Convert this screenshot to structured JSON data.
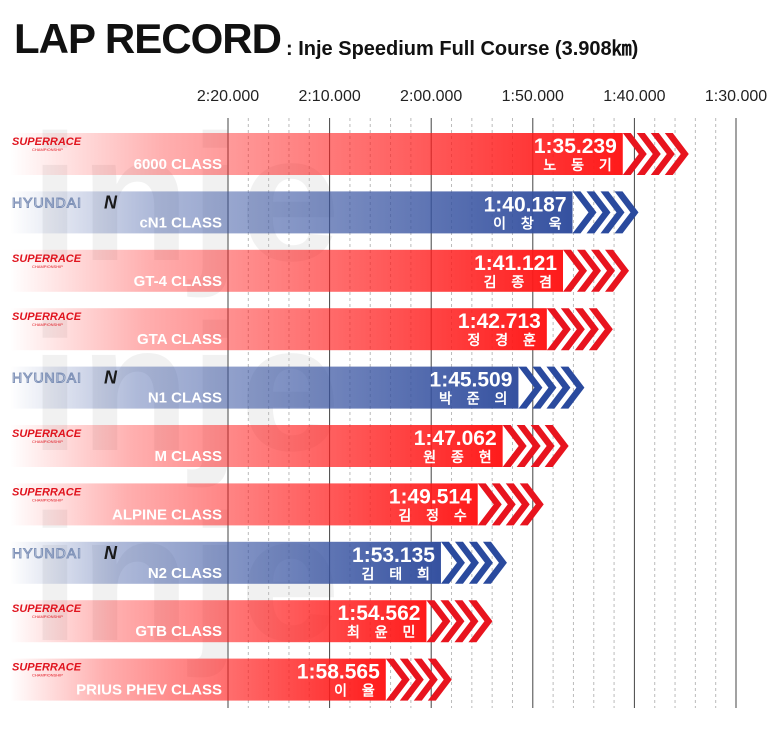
{
  "header": {
    "title": "LAP RECORD",
    "subtitle": ": Inje Speedium Full Course (3.908㎞)"
  },
  "watermark": "inje",
  "colors": {
    "red_series": "#ff1a1a",
    "blue_series": "#3551a0",
    "red_chevron": "#e8141e",
    "blue_chevron": "#2a4a9e"
  },
  "chart_data": {
    "type": "bar",
    "orientation": "horizontal",
    "title": "LAP RECORD",
    "subtitle": ": Inje Speedium Full Course (3.908㎞)",
    "x_axis": {
      "ticks": [
        "2:20.000",
        "2:10.000",
        "2:00.000",
        "1:50.000",
        "1:40.000",
        "1:30.000"
      ],
      "tick_seconds": [
        140,
        130,
        120,
        110,
        100,
        90
      ],
      "reversed": true,
      "unit": "lap time"
    },
    "categories": [
      "6000 CLASS",
      "cN1 CLASS",
      "GT-4 CLASS",
      "GTA CLASS",
      "N1 CLASS",
      "M CLASS",
      "ALPINE CLASS",
      "N2 CLASS",
      "GTB CLASS",
      "PRIUS PHEV CLASS"
    ],
    "series": [
      {
        "class": "6000 CLASS",
        "series_brand": "SUPERRACE",
        "lap_time": "1:35.239",
        "seconds": 95.239,
        "driver": "노 동 기"
      },
      {
        "class": "cN1 CLASS",
        "series_brand": "HYUNDAI N",
        "lap_time": "1:40.187",
        "seconds": 100.187,
        "driver": "이 창 욱"
      },
      {
        "class": "GT-4 CLASS",
        "series_brand": "SUPERRACE",
        "lap_time": "1:41.121",
        "seconds": 101.121,
        "driver": "김 종 겸"
      },
      {
        "class": "GTA CLASS",
        "series_brand": "SUPERRACE",
        "lap_time": "1:42.713",
        "seconds": 102.713,
        "driver": "정 경 훈"
      },
      {
        "class": "N1 CLASS",
        "series_brand": "HYUNDAI N",
        "lap_time": "1:45.509",
        "seconds": 105.509,
        "driver": "박 준 의"
      },
      {
        "class": "M CLASS",
        "series_brand": "SUPERRACE",
        "lap_time": "1:47.062",
        "seconds": 107.062,
        "driver": "원 종 현"
      },
      {
        "class": "ALPINE CLASS",
        "series_brand": "SUPERRACE",
        "lap_time": "1:49.514",
        "seconds": 109.514,
        "driver": "김 정 수"
      },
      {
        "class": "N2 CLASS",
        "series_brand": "HYUNDAI N",
        "lap_time": "1:53.135",
        "seconds": 113.135,
        "driver": "김 태 희"
      },
      {
        "class": "GTB CLASS",
        "series_brand": "SUPERRACE",
        "lap_time": "1:54.562",
        "seconds": 114.562,
        "driver": "최 윤 민"
      },
      {
        "class": "PRIUS PHEV CLASS",
        "series_brand": "SUPERRACE",
        "lap_time": "1:58.565",
        "seconds": 118.565,
        "driver": "이   율"
      }
    ],
    "brand_labels": {
      "SUPERRACE": {
        "name": "SUPERRACE",
        "sub": "CHAMPIONSHIP"
      },
      "HYUNDAI N": {
        "name": "HYUNDAI",
        "mark": "N"
      }
    }
  }
}
